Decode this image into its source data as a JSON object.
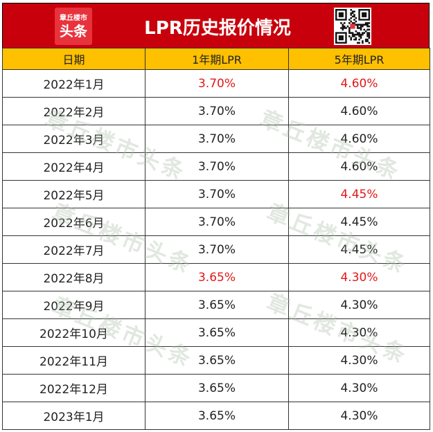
{
  "header": {
    "title": "LPR历史报价情况",
    "logo_top": "章丘楼市",
    "logo_bottom": "头条"
  },
  "columns": [
    "日期",
    "1年期LPR",
    "5年期LPR"
  ],
  "rows": [
    {
      "date": "2022年1月",
      "lpr1": "3.70%",
      "lpr5": "4.60%",
      "lpr1_changed": true,
      "lpr5_changed": true
    },
    {
      "date": "2022年2月",
      "lpr1": "3.70%",
      "lpr5": "4.60%",
      "lpr1_changed": false,
      "lpr5_changed": false
    },
    {
      "date": "2022年3月",
      "lpr1": "3.70%",
      "lpr5": "4.60%",
      "lpr1_changed": false,
      "lpr5_changed": false
    },
    {
      "date": "2022年4月",
      "lpr1": "3.70%",
      "lpr5": "4.60%",
      "lpr1_changed": false,
      "lpr5_changed": false
    },
    {
      "date": "2022年5月",
      "lpr1": "3.70%",
      "lpr5": "4.45%",
      "lpr1_changed": false,
      "lpr5_changed": true
    },
    {
      "date": "2022年6月",
      "lpr1": "3.70%",
      "lpr5": "4.45%",
      "lpr1_changed": false,
      "lpr5_changed": false
    },
    {
      "date": "2022年7月",
      "lpr1": "3.70%",
      "lpr5": "4.45%",
      "lpr1_changed": false,
      "lpr5_changed": false
    },
    {
      "date": "2022年8月",
      "lpr1": "3.65%",
      "lpr5": "4.30%",
      "lpr1_changed": true,
      "lpr5_changed": true
    },
    {
      "date": "2022年9月",
      "lpr1": "3.65%",
      "lpr5": "4.30%",
      "lpr1_changed": false,
      "lpr5_changed": false
    },
    {
      "date": "2022年10月",
      "lpr1": "3.65%",
      "lpr5": "4.30%",
      "lpr1_changed": false,
      "lpr5_changed": false
    },
    {
      "date": "2022年11月",
      "lpr1": "3.65%",
      "lpr5": "4.30%",
      "lpr1_changed": false,
      "lpr5_changed": false
    },
    {
      "date": "2022年12月",
      "lpr1": "3.65%",
      "lpr5": "4.30%",
      "lpr1_changed": false,
      "lpr5_changed": false
    },
    {
      "date": "2023年1月",
      "lpr1": "3.65%",
      "lpr5": "4.30%",
      "lpr1_changed": false,
      "lpr5_changed": false
    }
  ],
  "watermark": "章丘楼市头条",
  "colors": {
    "header_bg": "#c8000c",
    "column_header_bg": "#ffc000",
    "highlight_text": "#e01818"
  },
  "icons": {
    "logo": "brand-logo-icon",
    "qr": "qr-code-icon"
  }
}
